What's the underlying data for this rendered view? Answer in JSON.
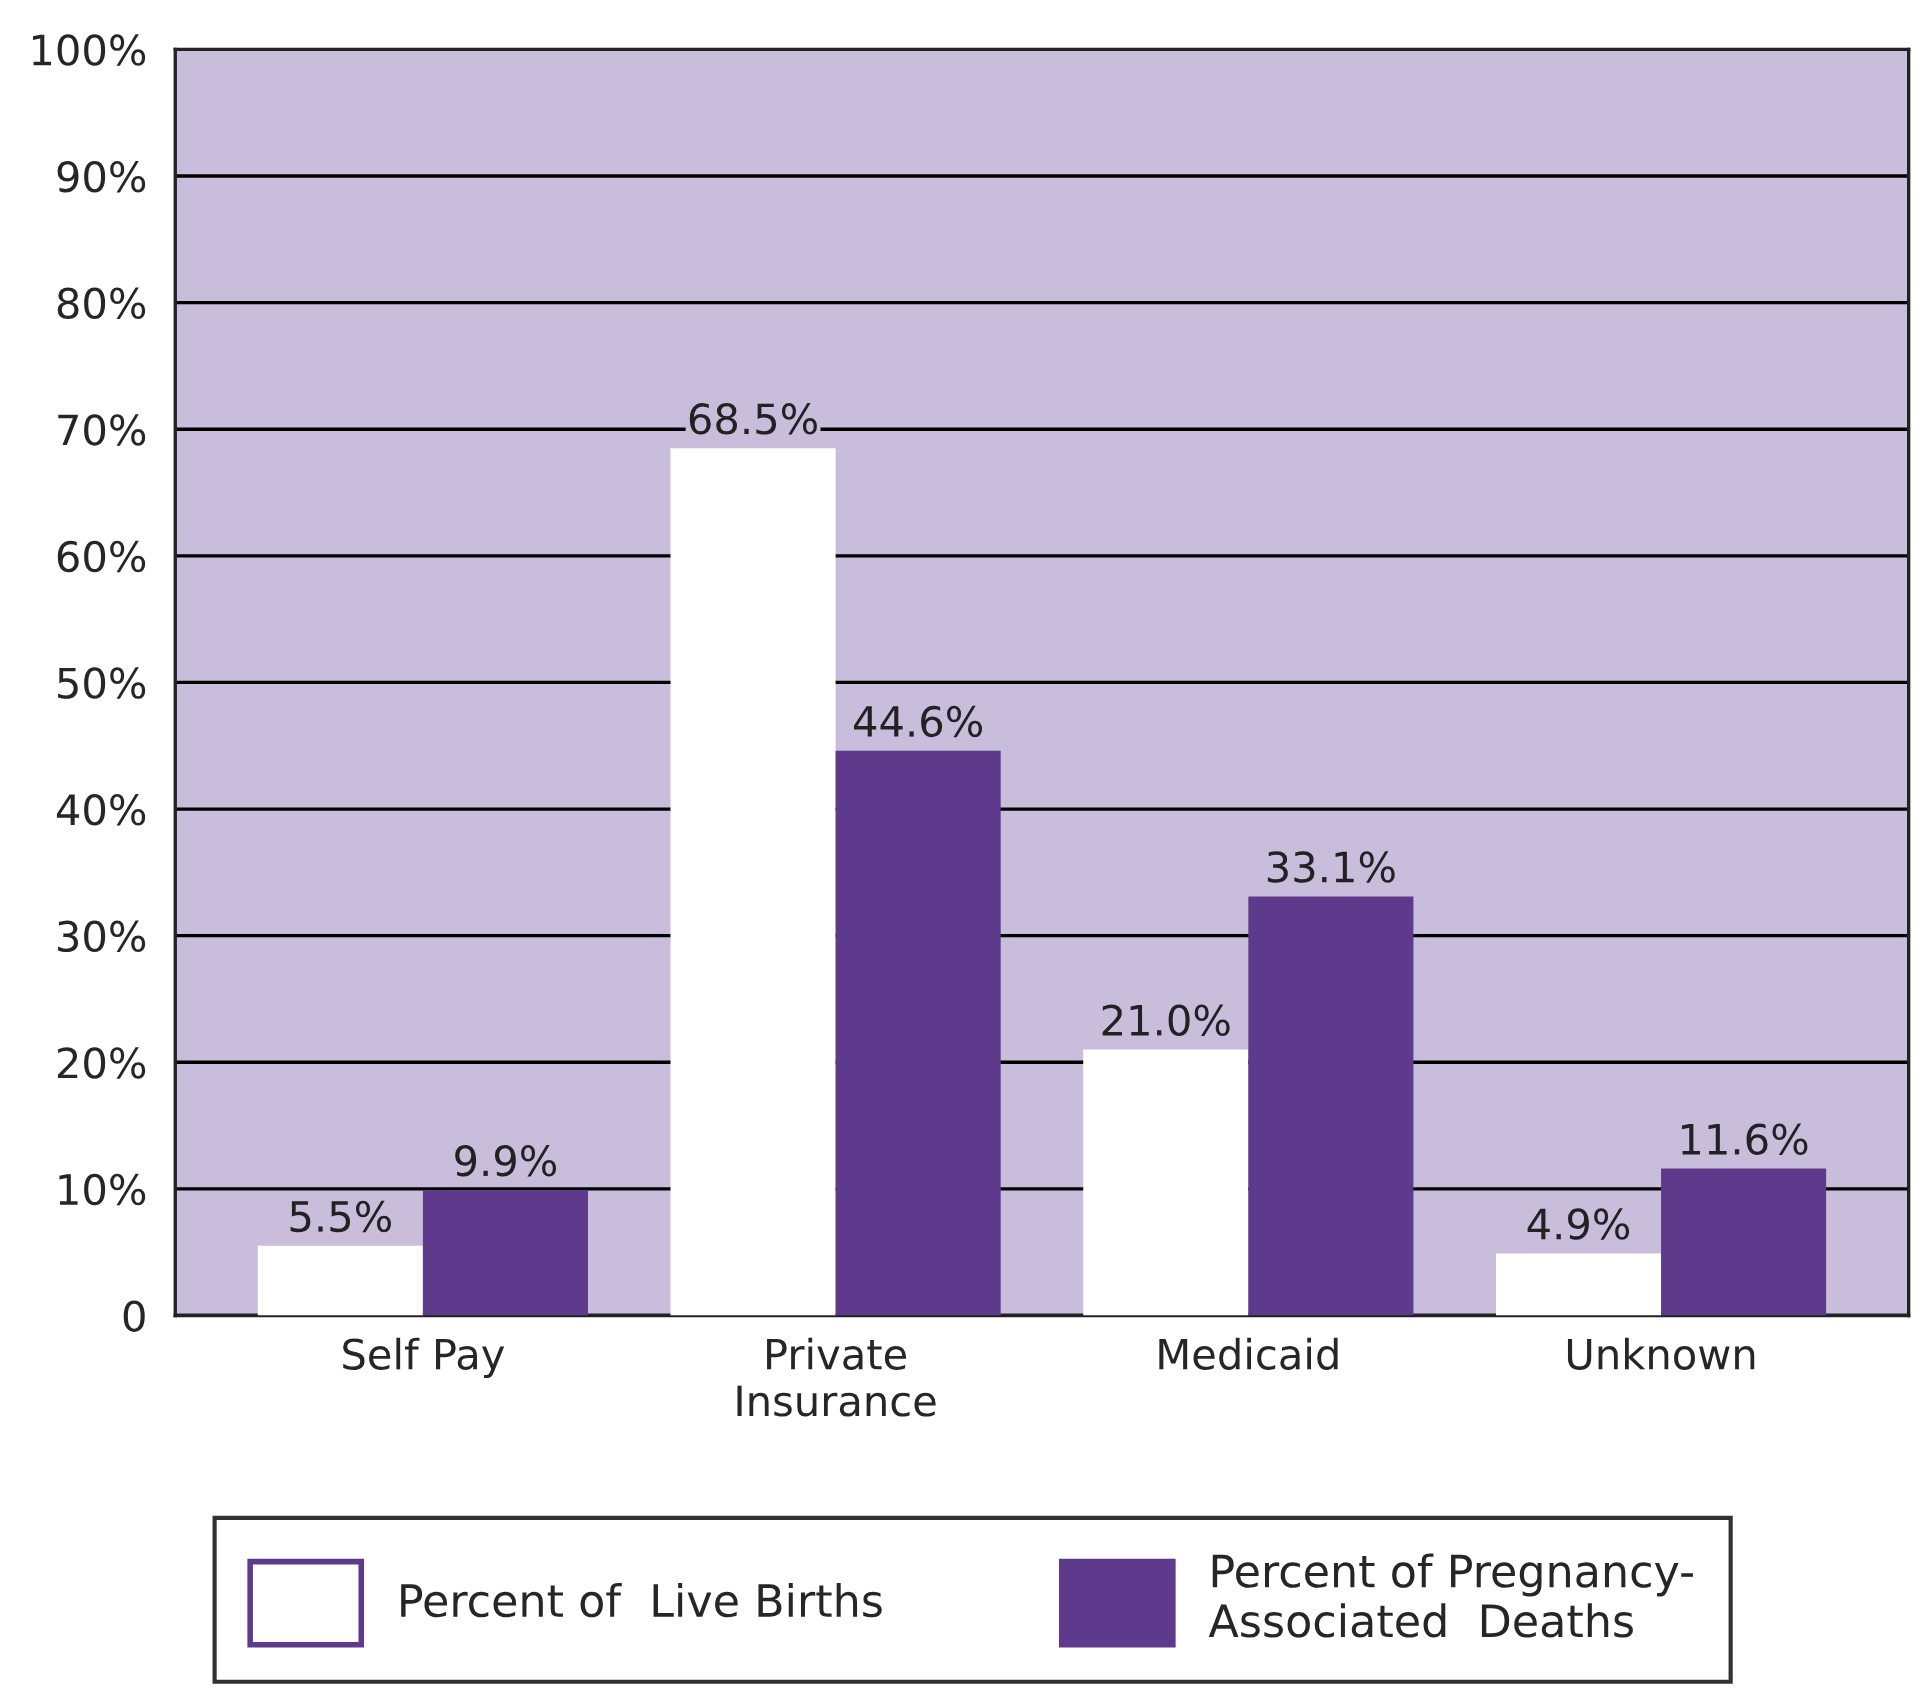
{
  "chart_data": {
    "type": "bar",
    "categories": [
      "Self Pay",
      "Private\nInsurance",
      "Medicaid",
      "Unknown"
    ],
    "series": [
      {
        "name": "Percent of  Live Births",
        "color": "#ffffff",
        "values": [
          5.5,
          68.5,
          21.0,
          4.9
        ],
        "value_labels": [
          "5.5%",
          "68.5%",
          "21.0%",
          "4.9%"
        ]
      },
      {
        "name": "Percent of Pregnancy-\nAssociated  Deaths",
        "color": "#5e3a8c",
        "values": [
          9.9,
          44.6,
          33.1,
          11.6
        ],
        "value_labels": [
          "9.9%",
          "44.6%",
          "33.1%",
          "11.6%"
        ]
      }
    ],
    "ylim": [
      0,
      100
    ],
    "yticks": [
      {
        "value": 0,
        "label": "0"
      },
      {
        "value": 10,
        "label": "10%"
      },
      {
        "value": 20,
        "label": "20%"
      },
      {
        "value": 30,
        "label": "30%"
      },
      {
        "value": 40,
        "label": "40%"
      },
      {
        "value": 50,
        "label": "50%"
      },
      {
        "value": 60,
        "label": "60%"
      },
      {
        "value": 70,
        "label": "70%"
      },
      {
        "value": 80,
        "label": "80%"
      },
      {
        "value": 90,
        "label": "90%"
      },
      {
        "value": 100,
        "label": "100%"
      }
    ],
    "grid": "y",
    "legend": "bottom"
  }
}
